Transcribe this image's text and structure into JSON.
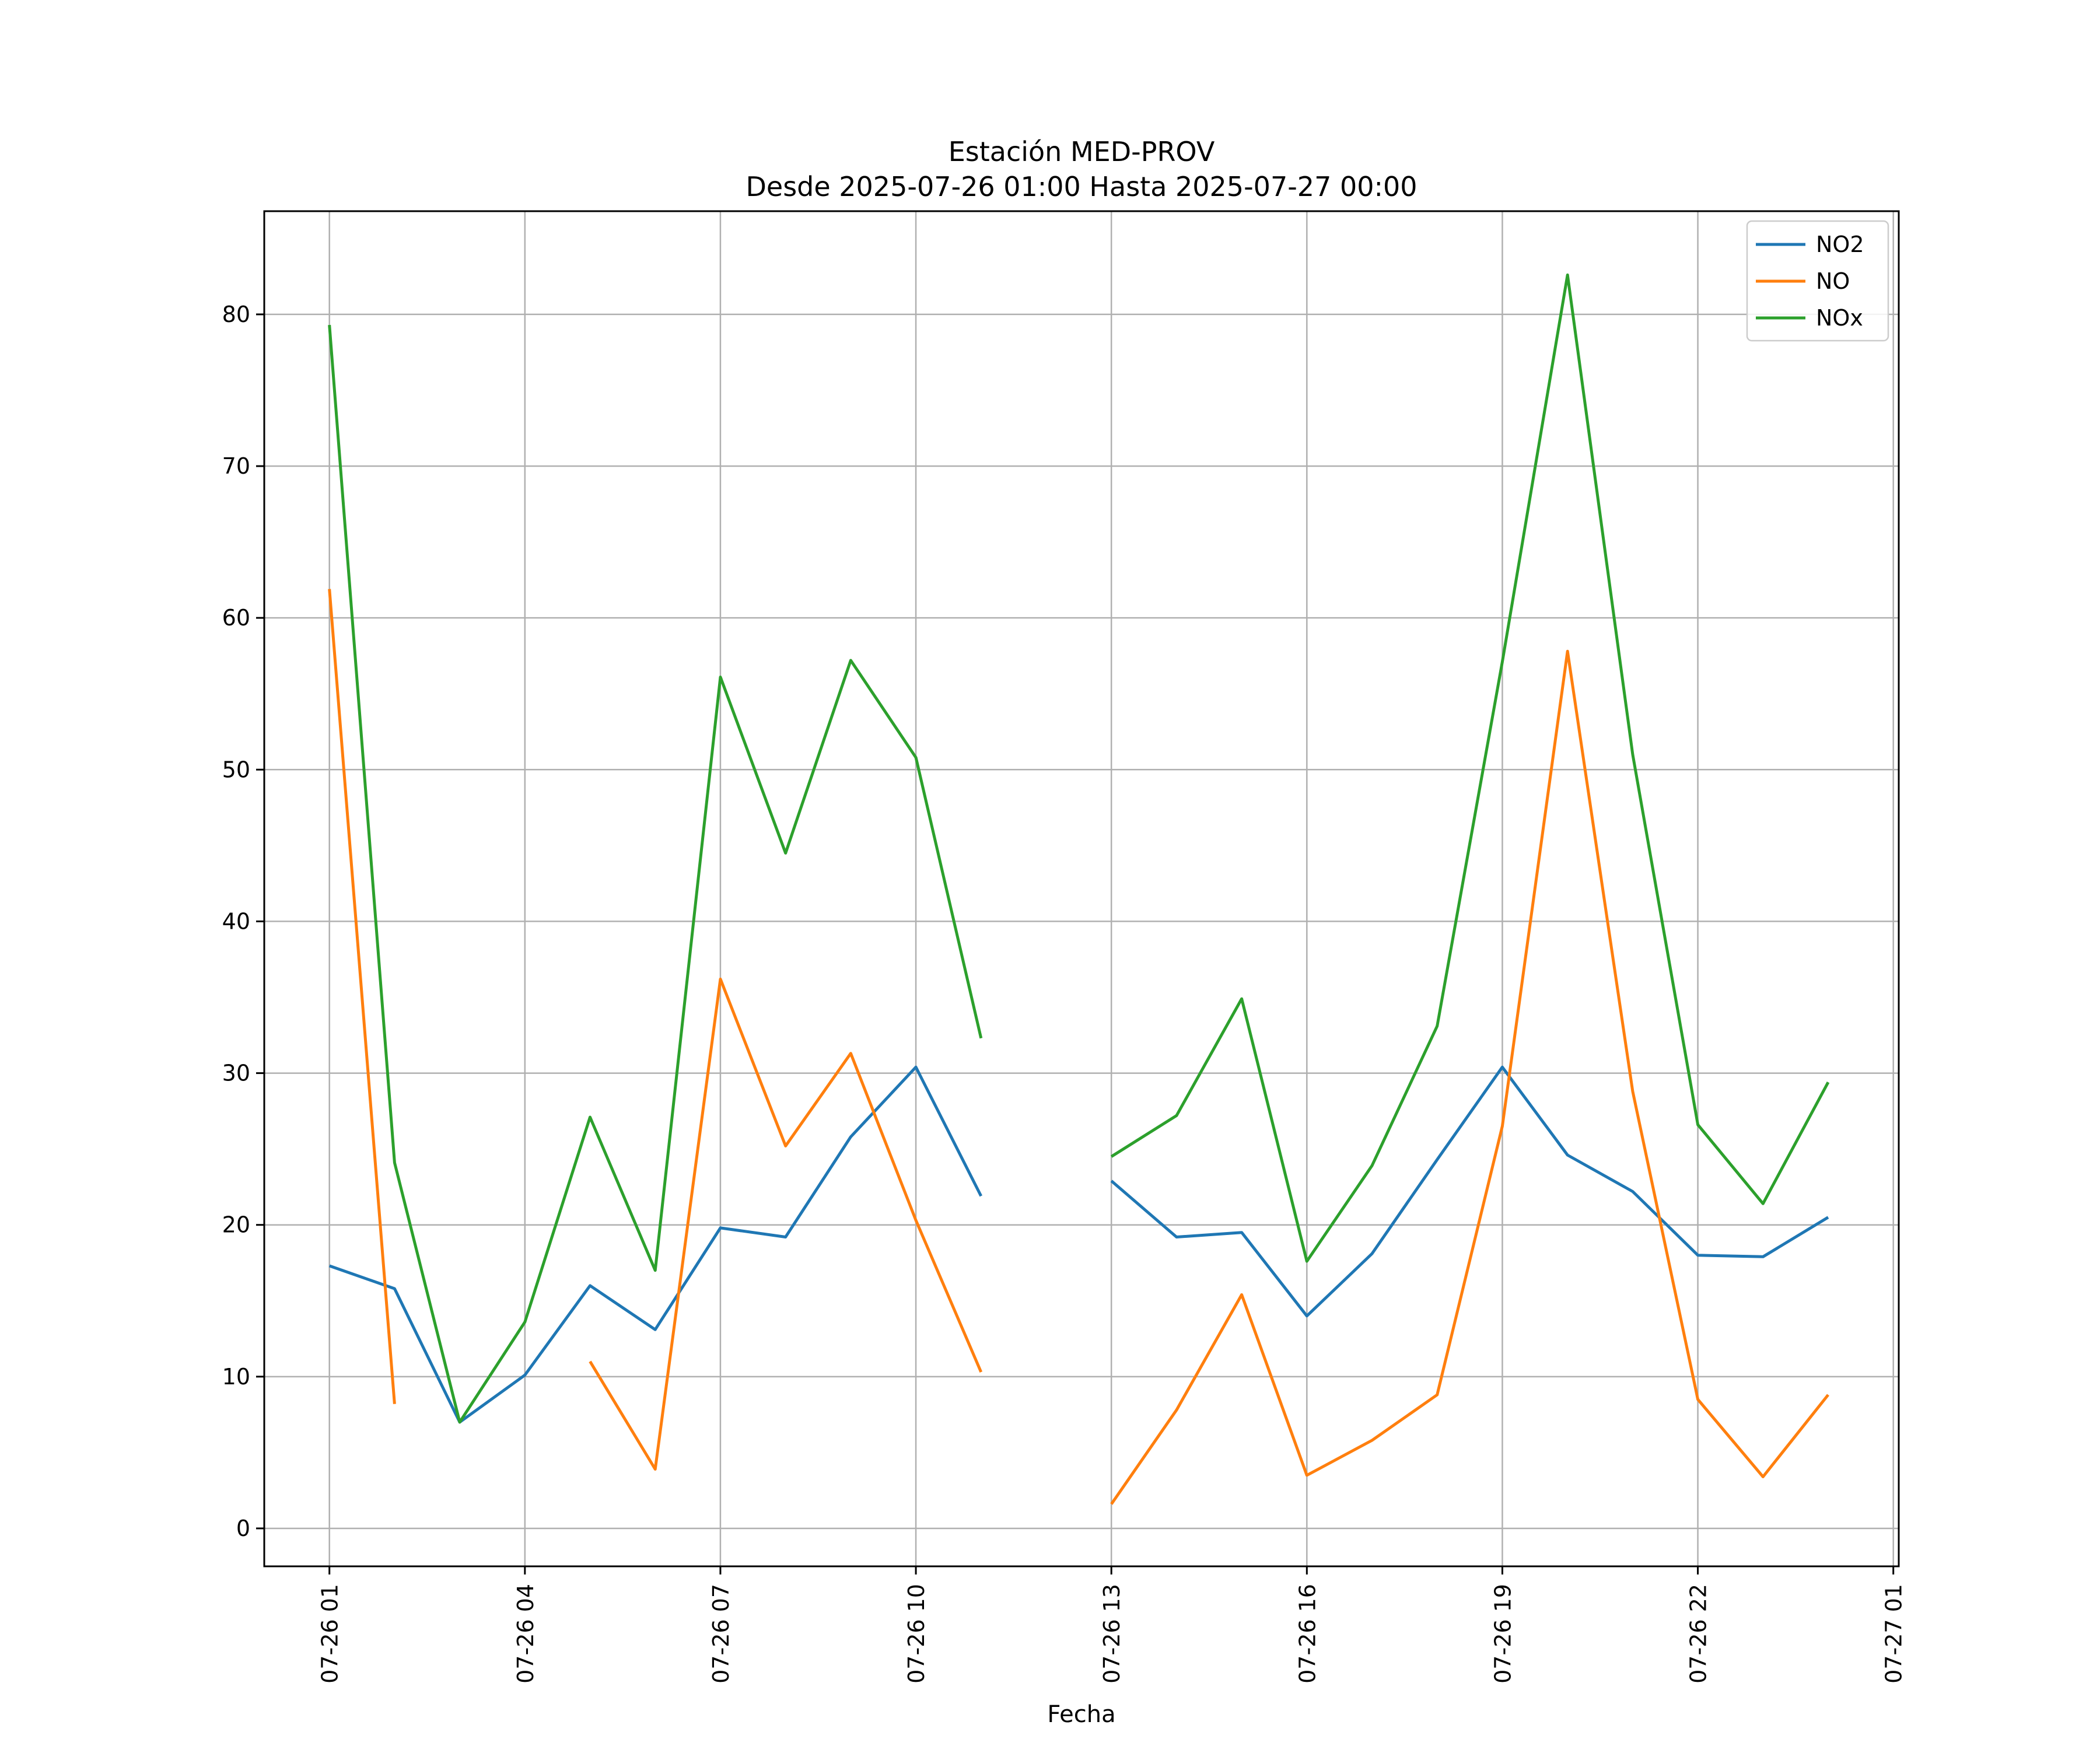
{
  "chart_data": {
    "type": "line",
    "title": "Estación MED-PROV",
    "subtitle": "Desde 2025-07-26 01:00 Hasta 2025-07-27 00:00",
    "xlabel": "Fecha",
    "ylabel": "",
    "xlim": [
      "2025-07-26 00:00",
      "2025-07-27 01:05"
    ],
    "ylim": [
      -2.5,
      86.8
    ],
    "x_ticks": [
      {
        "value": "2025-07-26 01:00",
        "label": "07-26 01"
      },
      {
        "value": "2025-07-26 04:00",
        "label": "07-26 04"
      },
      {
        "value": "2025-07-26 07:00",
        "label": "07-26 07"
      },
      {
        "value": "2025-07-26 10:00",
        "label": "07-26 10"
      },
      {
        "value": "2025-07-26 13:00",
        "label": "07-26 13"
      },
      {
        "value": "2025-07-26 16:00",
        "label": "07-26 16"
      },
      {
        "value": "2025-07-26 19:00",
        "label": "07-26 19"
      },
      {
        "value": "2025-07-26 22:00",
        "label": "07-26 22"
      },
      {
        "value": "2025-07-27 01:00",
        "label": "07-27 01"
      }
    ],
    "y_ticks": [
      0,
      10,
      20,
      30,
      40,
      50,
      60,
      70,
      80
    ],
    "grid": true,
    "legend_position": "top-right",
    "x": [
      "2025-07-26 01:00",
      "2025-07-26 02:00",
      "2025-07-26 03:00",
      "2025-07-26 04:00",
      "2025-07-26 05:00",
      "2025-07-26 06:00",
      "2025-07-26 07:00",
      "2025-07-26 08:00",
      "2025-07-26 09:00",
      "2025-07-26 10:00",
      "2025-07-26 11:00",
      "2025-07-26 12:00",
      "2025-07-26 13:00",
      "2025-07-26 14:00",
      "2025-07-26 15:00",
      "2025-07-26 16:00",
      "2025-07-26 17:00",
      "2025-07-26 18:00",
      "2025-07-26 19:00",
      "2025-07-26 20:00",
      "2025-07-26 21:00",
      "2025-07-26 22:00",
      "2025-07-26 23:00",
      "2025-07-27 00:00"
    ],
    "series": [
      {
        "name": "NO2",
        "color": "#1f77b4",
        "values": [
          17.3,
          15.8,
          7.0,
          10.1,
          16.0,
          13.1,
          19.8,
          19.2,
          25.8,
          30.4,
          21.9,
          null,
          22.9,
          19.2,
          19.5,
          14.0,
          18.1,
          24.3,
          30.4,
          24.6,
          22.2,
          18.0,
          17.9,
          20.5
        ]
      },
      {
        "name": "NO",
        "color": "#ff7f0e",
        "values": [
          61.9,
          8.2,
          null,
          null,
          11.0,
          3.9,
          36.2,
          25.2,
          31.3,
          20.3,
          10.3,
          null,
          1.6,
          7.8,
          15.4,
          3.5,
          5.8,
          8.8,
          26.5,
          57.8,
          28.8,
          8.5,
          3.4,
          8.8
        ]
      },
      {
        "name": "NOx",
        "color": "#2ca02c",
        "values": [
          79.3,
          24.1,
          7.0,
          13.6,
          27.1,
          17.0,
          56.1,
          44.5,
          57.2,
          50.8,
          32.3,
          null,
          24.5,
          27.2,
          34.9,
          17.6,
          23.9,
          33.1,
          57.1,
          82.6,
          51.0,
          26.6,
          21.4,
          29.4
        ]
      }
    ]
  }
}
